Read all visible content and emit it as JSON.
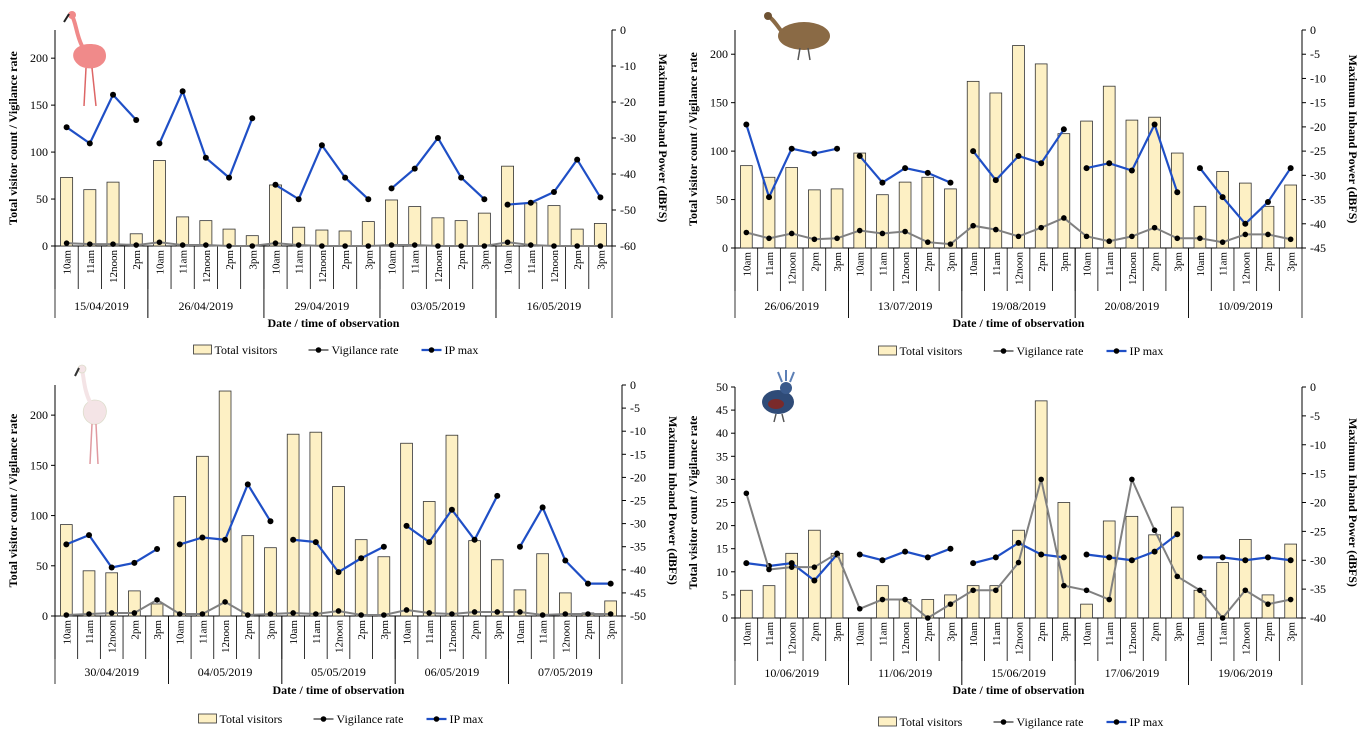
{
  "colors": {
    "bar_fill": "#fdf0c4",
    "bar_stroke": "#333333",
    "vigilance": "#808080",
    "ip_max": "#1f4fc6",
    "marker": "#000000"
  },
  "chart_data": [
    {
      "type": "bar",
      "icon": "flamingo-pink",
      "xlabel": "Date / time of observation",
      "ylabel": "Total visitor count / Vigilance rate",
      "y2label": "Maximum Inband Power (dBFS)",
      "ylim": [
        0,
        230
      ],
      "yticks": [
        0,
        50,
        100,
        150,
        200
      ],
      "y2lim": [
        -60,
        0
      ],
      "y2ticks": [
        0,
        -10,
        -20,
        -30,
        -40,
        -50,
        -60
      ],
      "legend": [
        "Total visitors",
        "Vigilance rate",
        "IP max"
      ],
      "groups": [
        {
          "date": "15/04/2019",
          "times": [
            "10am",
            "11am",
            "12noon",
            "2pm"
          ],
          "visitors": [
            73,
            60,
            68,
            13
          ],
          "vigilance": [
            3,
            2,
            2,
            1
          ],
          "ip_max": [
            -27,
            -31.5,
            -18,
            -25
          ]
        },
        {
          "date": "26/04/2019",
          "times": [
            "10am",
            "11am",
            "12noon",
            "2pm",
            "3pm"
          ],
          "visitors": [
            91,
            31,
            27,
            18,
            11
          ],
          "vigilance": [
            4,
            1,
            1,
            0,
            0
          ],
          "ip_max": [
            -31.5,
            -17,
            -35.5,
            -41,
            -24.5
          ]
        },
        {
          "date": "29/04/2019",
          "times": [
            "10am",
            "11am",
            "12noon",
            "2pm",
            "3pm"
          ],
          "visitors": [
            65,
            20,
            17,
            16,
            26
          ],
          "vigilance": [
            3,
            1,
            0,
            0,
            0
          ],
          "ip_max": [
            -43,
            -47,
            -32,
            -41,
            -47
          ]
        },
        {
          "date": "03/05/2019",
          "times": [
            "10am",
            "11am",
            "12noon",
            "2pm",
            "3pm"
          ],
          "visitors": [
            49,
            42,
            30,
            27,
            35
          ],
          "vigilance": [
            1,
            1,
            0,
            0,
            0
          ],
          "ip_max": [
            -44,
            -38.5,
            -30,
            -41,
            -47
          ]
        },
        {
          "date": "16/05/2019",
          "times": [
            "10am",
            "11am",
            "12noon",
            "2pm",
            "3pm"
          ],
          "visitors": [
            85,
            46,
            43,
            18,
            24
          ],
          "vigilance": [
            4,
            1,
            0,
            0,
            0
          ],
          "ip_max": [
            -48.5,
            -48,
            -45,
            -36,
            -46.5
          ]
        }
      ]
    },
    {
      "type": "bar",
      "icon": "tinamou",
      "xlabel": "Date / time of observation",
      "ylabel": "Total visitor count / Vigilance rate",
      "y2label": "Maximum Inband Power (dBFS)",
      "ylim": [
        0,
        225
      ],
      "yticks": [
        0,
        50,
        100,
        150,
        200
      ],
      "y2lim": [
        -45,
        0
      ],
      "y2ticks": [
        0,
        -5,
        -10,
        -15,
        -20,
        -25,
        -30,
        -35,
        -40,
        -45
      ],
      "legend": [
        "Total visitors",
        "Vigilance rate",
        "IP max"
      ],
      "groups": [
        {
          "date": "26/06/2019",
          "times": [
            "10am",
            "11am",
            "12noon",
            "2pm",
            "3pm"
          ],
          "visitors": [
            85,
            73,
            83,
            60,
            61
          ],
          "vigilance": [
            16,
            10,
            15,
            9,
            10
          ],
          "ip_max": [
            -19.5,
            -34.5,
            -24.5,
            -25.5,
            -24.5
          ]
        },
        {
          "date": "13/07/2019",
          "times": [
            "10am",
            "11am",
            "12noon",
            "2pm",
            "3pm"
          ],
          "visitors": [
            98,
            55,
            68,
            73,
            61
          ],
          "vigilance": [
            18,
            15,
            17,
            6,
            4
          ],
          "ip_max": [
            -26,
            -31.5,
            -28.5,
            -29.5,
            -31.5
          ]
        },
        {
          "date": "19/08/2019",
          "times": [
            "10am",
            "11am",
            "12noon",
            "2pm",
            "3pm"
          ],
          "visitors": [
            172,
            160,
            209,
            190,
            118
          ],
          "vigilance": [
            23,
            19,
            12,
            21,
            31
          ],
          "ip_max": [
            -25,
            -31,
            -26,
            -27.5,
            -20.5
          ]
        },
        {
          "date": "20/08/2019",
          "times": [
            "10am",
            "11am",
            "12noon",
            "2pm",
            "3pm"
          ],
          "visitors": [
            131,
            167,
            132,
            135,
            98
          ],
          "vigilance": [
            12,
            7,
            12,
            21,
            10
          ],
          "ip_max": [
            -28.5,
            -27.5,
            -29,
            -19.5,
            -33.5
          ]
        },
        {
          "date": "10/09/2019",
          "times": [
            "10am",
            "11am",
            "12noon",
            "2pm",
            "3pm"
          ],
          "visitors": [
            43,
            79,
            67,
            43,
            65
          ],
          "vigilance": [
            10,
            6,
            14,
            14,
            9
          ],
          "ip_max": [
            -28.5,
            -34.5,
            -40,
            -35.5,
            -28.5
          ]
        }
      ]
    },
    {
      "type": "bar",
      "icon": "flamingo-white",
      "xlabel": "Date / time of observation",
      "ylabel": "Total visitor count / Vigilance rate",
      "y2label": "Maximum Inband Power (dBFS)",
      "ylim": [
        0,
        230
      ],
      "yticks": [
        0,
        50,
        100,
        150,
        200
      ],
      "y2lim": [
        -50,
        0
      ],
      "y2ticks": [
        0,
        -5,
        -10,
        -15,
        -20,
        -25,
        -30,
        -35,
        -40,
        -45,
        -50
      ],
      "legend": [
        "Total visitors",
        "Vigilance rate",
        "IP max"
      ],
      "groups": [
        {
          "date": "30/04/2019",
          "times": [
            "10am",
            "11am",
            "12noon",
            "2pm",
            "3pm"
          ],
          "visitors": [
            91,
            45,
            43,
            25,
            12
          ],
          "vigilance": [
            1,
            2,
            3,
            3,
            16
          ],
          "ip_max": [
            -34.5,
            -32.5,
            -39.5,
            -38.5,
            -35.5
          ]
        },
        {
          "date": "04/05/2019",
          "times": [
            "10am",
            "11am",
            "12noon",
            "2pm",
            "3pm"
          ],
          "visitors": [
            119,
            159,
            224,
            80,
            68
          ],
          "vigilance": [
            2,
            2,
            14,
            1,
            2
          ],
          "ip_max": [
            -34.5,
            -33,
            -33.5,
            -21.5,
            -29.5
          ]
        },
        {
          "date": "05/05/2019",
          "times": [
            "10am",
            "11am",
            "12noon",
            "2pm",
            "3pm"
          ],
          "visitors": [
            181,
            183,
            129,
            76,
            59
          ],
          "vigilance": [
            3,
            2,
            5,
            1,
            1
          ],
          "ip_max": [
            -33.5,
            -34,
            -40.5,
            -37.5,
            -35
          ]
        },
        {
          "date": "06/05/2019",
          "times": [
            "10am",
            "11am",
            "12noon",
            "2pm",
            "3pm"
          ],
          "visitors": [
            172,
            114,
            180,
            75,
            56
          ],
          "vigilance": [
            6,
            3,
            2,
            4,
            4
          ],
          "ip_max": [
            -30.5,
            -34,
            -27,
            -33.5,
            -24
          ]
        },
        {
          "date": "07/05/2019",
          "times": [
            "10am",
            "11am",
            "12noon",
            "2pm",
            "3pm"
          ],
          "visitors": [
            26,
            62,
            23,
            3,
            15
          ],
          "vigilance": [
            4,
            1,
            2,
            2,
            2
          ],
          "ip_max": [
            -35,
            -26.5,
            -38,
            -43,
            -43
          ]
        }
      ]
    },
    {
      "type": "bar",
      "icon": "crowned-pigeon",
      "xlabel": "Date / time of observation",
      "ylabel": "Total visitor count / Vigilance rate",
      "y2label": "Maximum Inband Power (dBFS)",
      "ylim": [
        0,
        50
      ],
      "yticks": [
        0,
        5,
        10,
        15,
        20,
        25,
        30,
        35,
        40,
        45,
        50
      ],
      "y2lim": [
        -40,
        0
      ],
      "y2ticks": [
        0,
        -5,
        -10,
        -15,
        -20,
        -25,
        -30,
        -35,
        -40
      ],
      "legend": [
        "Total visitors",
        "Vigilance rate",
        "IP max"
      ],
      "groups": [
        {
          "date": "10/06/2019",
          "times": [
            "10am",
            "11am",
            "12noon",
            "2pm",
            "3pm"
          ],
          "visitors": [
            6,
            7,
            14,
            19,
            14
          ],
          "vigilance": [
            27,
            10.5,
            11,
            11,
            14
          ],
          "ip_max": [
            -30.5,
            -31,
            -30.5,
            -33.5,
            -29
          ]
        },
        {
          "date": "11/06/2019",
          "times": [
            "10am",
            "11am",
            "12noon",
            "2pm",
            "3pm"
          ],
          "visitors": [
            null,
            7,
            4,
            4,
            5
          ],
          "vigilance": [
            2,
            4,
            4,
            0,
            3
          ],
          "ip_max": [
            -29,
            -30,
            -28.5,
            -29.5,
            -28
          ]
        },
        {
          "date": "15/06/2019",
          "times": [
            "10am",
            "11am",
            "12noon",
            "2pm",
            "3pm"
          ],
          "visitors": [
            7,
            7,
            19,
            47,
            25
          ],
          "vigilance": [
            6,
            6,
            12,
            30,
            7
          ],
          "ip_max": [
            -30.5,
            -29.5,
            -27,
            -29,
            -29.5
          ]
        },
        {
          "date": "17/06/2019",
          "times": [
            "10am",
            "11am",
            "12noon",
            "2pm",
            "3pm"
          ],
          "visitors": [
            3,
            21,
            22,
            18,
            24
          ],
          "vigilance": [
            6,
            4,
            30,
            19,
            9
          ],
          "ip_max": [
            -29,
            -29.5,
            -30,
            -28.5,
            -25.5
          ]
        },
        {
          "date": "19/06/2019",
          "times": [
            "10am",
            "11am",
            "12noon",
            "2pm",
            "3pm"
          ],
          "visitors": [
            6,
            12,
            17,
            5,
            16
          ],
          "vigilance": [
            6,
            0,
            6,
            3,
            4
          ],
          "ip_max": [
            -29.5,
            -29.5,
            -30,
            -29.5,
            -30
          ]
        }
      ]
    }
  ]
}
